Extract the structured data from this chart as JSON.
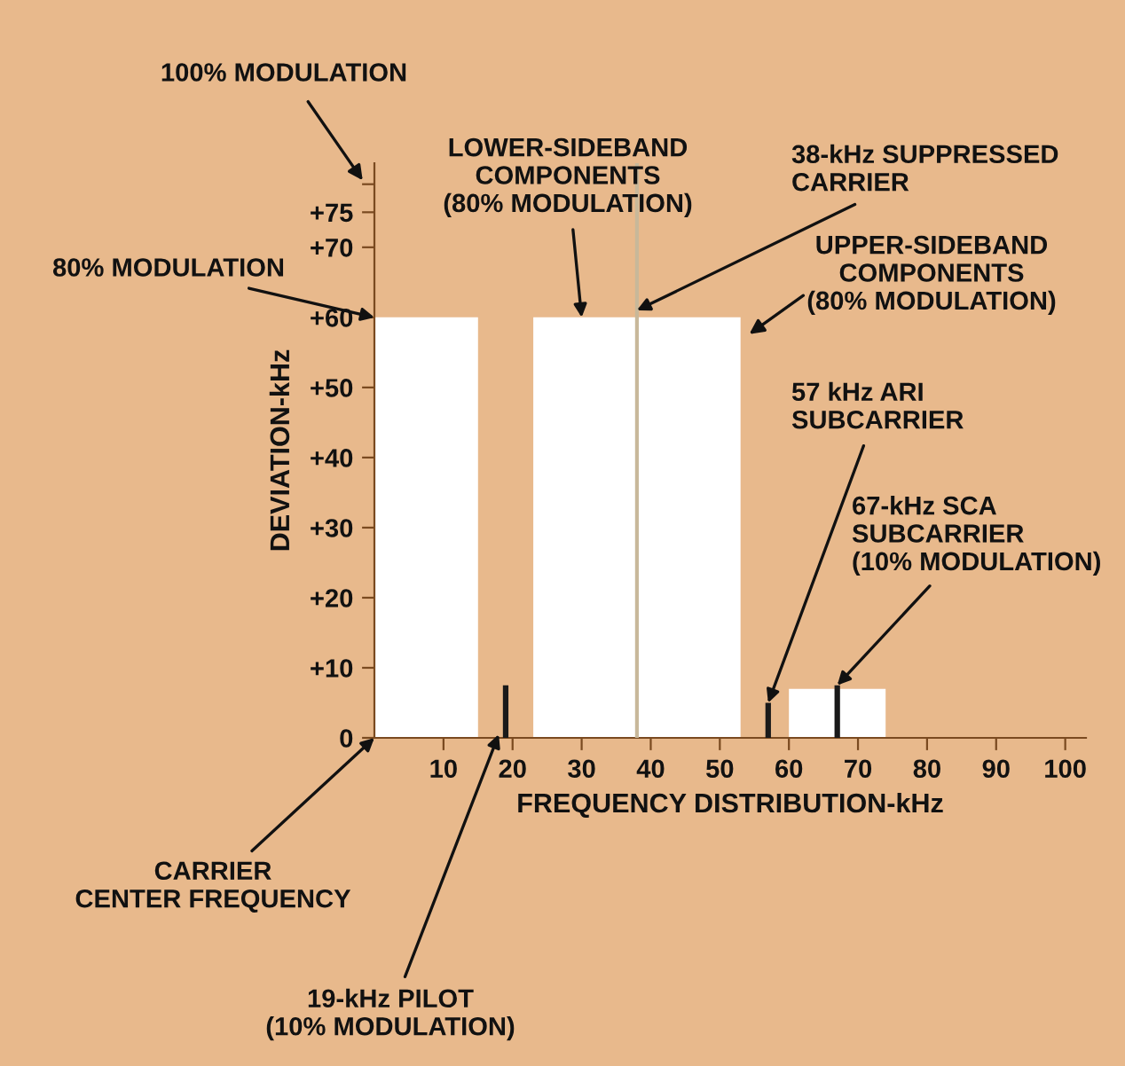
{
  "chart_data": {
    "type": "area",
    "xlabel": "FREQUENCY DISTRIBUTION-kHz",
    "ylabel": "DEVIATION-kHz",
    "xlim": [
      0,
      103
    ],
    "ylim": [
      0,
      82
    ],
    "xticks": [
      10,
      20,
      30,
      40,
      50,
      60,
      70,
      80,
      90,
      100
    ],
    "yticks": [
      0,
      {
        "value": 10,
        "label": "+10"
      },
      {
        "value": 20,
        "label": "+20"
      },
      {
        "value": 30,
        "label": "+30"
      },
      {
        "value": 40,
        "label": "+40"
      },
      {
        "value": 50,
        "label": "+50"
      },
      {
        "value": 60,
        "label": "+60"
      },
      {
        "value": 70,
        "label": "+70"
      },
      {
        "value": 75,
        "label": "+75"
      },
      {
        "value": 79,
        "label": null
      }
    ],
    "grid": false,
    "series": [
      {
        "color": "#ffffff",
        "x": [
          0,
          0,
          15,
          15,
          23,
          23,
          53,
          53,
          60,
          60,
          74,
          74
        ],
        "values": [
          0,
          60,
          60,
          0,
          0,
          60,
          60,
          0,
          0,
          7,
          7,
          0
        ]
      },
      {
        "type": "bar",
        "color": "#1a1a1a",
        "x": [
          19,
          57,
          67
        ],
        "values": [
          7.5,
          5,
          7.5
        ]
      }
    ],
    "ref_lines": [
      {
        "axis": "x",
        "value": 38,
        "color": "#c8b89a"
      }
    ],
    "annotations": [
      "100% MODULATION",
      {
        "text": "80% MODULATION",
        "x": 0,
        "y": 60
      },
      {
        "text": "LOWER-SIDEBAND\nCOMPONENTS\n(80% MODULATION)",
        "x": 30,
        "y": 60
      },
      {
        "text": "38-kHz SUPPRESSED\nCARRIER",
        "x": 38,
        "y": 61
      },
      "UPPER-SIDEBAND\nCOMPONENTS\n(80% MODULATION)",
      {
        "text": "57 kHz ARI\nSUBCARRIER",
        "x": 57,
        "y": 5
      },
      {
        "text": "67-kHz SCA\nSUBCARRIER\n(10% MODULATION)",
        "x": 67,
        "y": 7.5
      },
      {
        "text": "CARRIER\nCENTER FREQUENCY",
        "x": 0,
        "y": 0
      },
      {
        "text": "19-kHz PILOT\n(10% MODULATION)",
        "x": 18,
        "y": 0.5
      }
    ]
  }
}
